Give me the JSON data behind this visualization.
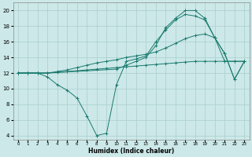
{
  "title": "",
  "xlabel": "Humidex (Indice chaleur)",
  "ylabel": "",
  "bg_color": "#cce8e8",
  "line_color": "#1a7a6e",
  "grid_color": "#aacece",
  "xlim": [
    -0.5,
    23.5
  ],
  "ylim": [
    3.5,
    21
  ],
  "yticks": [
    4,
    6,
    8,
    10,
    12,
    14,
    16,
    18,
    20
  ],
  "xticks": [
    0,
    1,
    2,
    3,
    4,
    5,
    6,
    7,
    8,
    9,
    10,
    11,
    12,
    13,
    14,
    15,
    16,
    17,
    18,
    19,
    20,
    21,
    22,
    23
  ],
  "series": [
    {
      "x": [
        0,
        1,
        2,
        3,
        4,
        5,
        6,
        7,
        8,
        9,
        10,
        11,
        12,
        13,
        14,
        15,
        16,
        17,
        18,
        19,
        20,
        21,
        22,
        23
      ],
      "y": [
        12,
        12,
        12,
        12,
        12.1,
        12.2,
        12.3,
        12.4,
        12.5,
        12.6,
        12.7,
        12.8,
        12.9,
        13.0,
        13.1,
        13.2,
        13.3,
        13.4,
        13.5,
        13.5,
        13.5,
        13.5,
        13.5,
        13.5
      ]
    },
    {
      "x": [
        0,
        1,
        2,
        3,
        4,
        5,
        6,
        7,
        8,
        9,
        10,
        11,
        12,
        13,
        14,
        15,
        16,
        17,
        18,
        19,
        20,
        21,
        22,
        23
      ],
      "y": [
        12,
        12,
        12,
        11.5,
        10.5,
        9.8,
        8.8,
        6.5,
        4.0,
        4.3,
        10.5,
        13.5,
        13.8,
        14.2,
        16.0,
        17.5,
        18.8,
        19.5,
        19.3,
        18.8,
        16.5,
        14.5,
        11.2,
        13.5
      ]
    },
    {
      "x": [
        0,
        1,
        2,
        3,
        10,
        11,
        12,
        13,
        14,
        15,
        16,
        17,
        18,
        19,
        20,
        21,
        22,
        23
      ],
      "y": [
        12,
        12,
        12,
        12,
        12.5,
        13.0,
        13.5,
        14.0,
        15.5,
        17.8,
        19.0,
        20.0,
        20.0,
        19.0,
        16.5,
        14.5,
        11.2,
        13.5
      ]
    },
    {
      "x": [
        0,
        1,
        2,
        3,
        4,
        5,
        6,
        7,
        8,
        9,
        10,
        11,
        12,
        13,
        14,
        15,
        16,
        17,
        18,
        19,
        20,
        21,
        22,
        23
      ],
      "y": [
        12,
        12,
        12,
        12,
        12.2,
        12.4,
        12.7,
        13.0,
        13.3,
        13.5,
        13.7,
        14.0,
        14.2,
        14.4,
        14.7,
        15.2,
        15.8,
        16.4,
        16.8,
        17.0,
        16.5,
        13.5,
        13.5,
        13.5
      ]
    }
  ]
}
